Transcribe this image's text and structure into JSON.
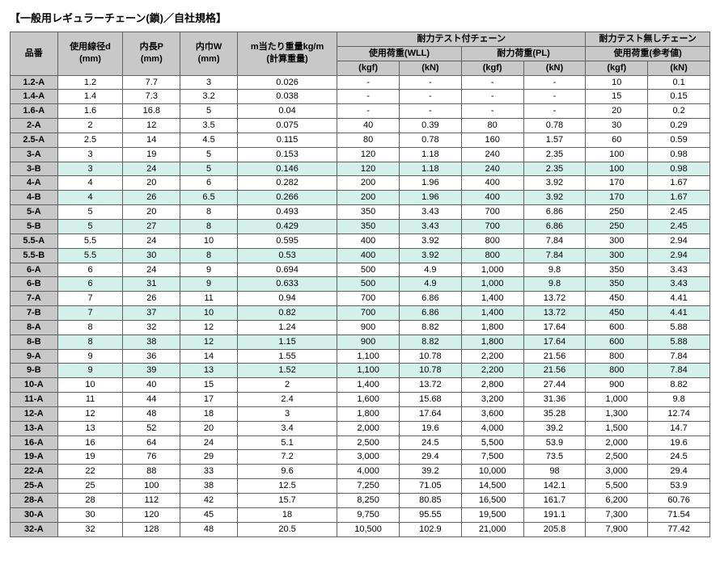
{
  "title": "【一般用レギュラーチェーン(鎖)／自社規格】",
  "headers": {
    "part_no": "品番",
    "wire_dia": "使用線径d",
    "wire_dia_unit": "(mm)",
    "inner_len": "内長P",
    "inner_len_unit": "(mm)",
    "inner_width": "内巾W",
    "inner_width_unit": "(mm)",
    "weight_per_m": "m当たり重量kg/m",
    "weight_calc": "(計算重量)",
    "chain_with_test": "耐力テスト付チェーン",
    "wll": "使用荷重(WLL)",
    "pl": "耐力荷重(PL)",
    "chain_no_test": "耐力テスト無しチェーン",
    "ref_load": "使用荷重(参考値)",
    "kgf": "(kgf)",
    "kn": "(kN)"
  },
  "rows": [
    {
      "pn": "1.2-A",
      "d": "1.2",
      "p": "7.7",
      "w": "3",
      "wt": "0.026",
      "wll_kgf": "-",
      "wll_kn": "-",
      "pl_kgf": "-",
      "pl_kn": "-",
      "ref_kgf": "10",
      "ref_kn": "0.1",
      "b": false
    },
    {
      "pn": "1.4-A",
      "d": "1.4",
      "p": "7.3",
      "w": "3.2",
      "wt": "0.038",
      "wll_kgf": "-",
      "wll_kn": "-",
      "pl_kgf": "-",
      "pl_kn": "-",
      "ref_kgf": "15",
      "ref_kn": "0.15",
      "b": false
    },
    {
      "pn": "1.6-A",
      "d": "1.6",
      "p": "16.8",
      "w": "5",
      "wt": "0.04",
      "wll_kgf": "-",
      "wll_kn": "-",
      "pl_kgf": "-",
      "pl_kn": "-",
      "ref_kgf": "20",
      "ref_kn": "0.2",
      "b": false
    },
    {
      "pn": "2-A",
      "d": "2",
      "p": "12",
      "w": "3.5",
      "wt": "0.075",
      "wll_kgf": "40",
      "wll_kn": "0.39",
      "pl_kgf": "80",
      "pl_kn": "0.78",
      "ref_kgf": "30",
      "ref_kn": "0.29",
      "b": false
    },
    {
      "pn": "2.5-A",
      "d": "2.5",
      "p": "14",
      "w": "4.5",
      "wt": "0.115",
      "wll_kgf": "80",
      "wll_kn": "0.78",
      "pl_kgf": "160",
      "pl_kn": "1.57",
      "ref_kgf": "60",
      "ref_kn": "0.59",
      "b": false
    },
    {
      "pn": "3-A",
      "d": "3",
      "p": "19",
      "w": "5",
      "wt": "0.153",
      "wll_kgf": "120",
      "wll_kn": "1.18",
      "pl_kgf": "240",
      "pl_kn": "2.35",
      "ref_kgf": "100",
      "ref_kn": "0.98",
      "b": false
    },
    {
      "pn": "3-B",
      "d": "3",
      "p": "24",
      "w": "5",
      "wt": "0.146",
      "wll_kgf": "120",
      "wll_kn": "1.18",
      "pl_kgf": "240",
      "pl_kn": "2.35",
      "ref_kgf": "100",
      "ref_kn": "0.98",
      "b": true
    },
    {
      "pn": "4-A",
      "d": "4",
      "p": "20",
      "w": "6",
      "wt": "0.282",
      "wll_kgf": "200",
      "wll_kn": "1.96",
      "pl_kgf": "400",
      "pl_kn": "3.92",
      "ref_kgf": "170",
      "ref_kn": "1.67",
      "b": false
    },
    {
      "pn": "4-B",
      "d": "4",
      "p": "26",
      "w": "6.5",
      "wt": "0.266",
      "wll_kgf": "200",
      "wll_kn": "1.96",
      "pl_kgf": "400",
      "pl_kn": "3.92",
      "ref_kgf": "170",
      "ref_kn": "1.67",
      "b": true
    },
    {
      "pn": "5-A",
      "d": "5",
      "p": "20",
      "w": "8",
      "wt": "0.493",
      "wll_kgf": "350",
      "wll_kn": "3.43",
      "pl_kgf": "700",
      "pl_kn": "6.86",
      "ref_kgf": "250",
      "ref_kn": "2.45",
      "b": false
    },
    {
      "pn": "5-B",
      "d": "5",
      "p": "27",
      "w": "8",
      "wt": "0.429",
      "wll_kgf": "350",
      "wll_kn": "3.43",
      "pl_kgf": "700",
      "pl_kn": "6.86",
      "ref_kgf": "250",
      "ref_kn": "2.45",
      "b": true
    },
    {
      "pn": "5.5-A",
      "d": "5.5",
      "p": "24",
      "w": "10",
      "wt": "0.595",
      "wll_kgf": "400",
      "wll_kn": "3.92",
      "pl_kgf": "800",
      "pl_kn": "7.84",
      "ref_kgf": "300",
      "ref_kn": "2.94",
      "b": false
    },
    {
      "pn": "5.5-B",
      "d": "5.5",
      "p": "30",
      "w": "8",
      "wt": "0.53",
      "wll_kgf": "400",
      "wll_kn": "3.92",
      "pl_kgf": "800",
      "pl_kn": "7.84",
      "ref_kgf": "300",
      "ref_kn": "2.94",
      "b": true
    },
    {
      "pn": "6-A",
      "d": "6",
      "p": "24",
      "w": "9",
      "wt": "0.694",
      "wll_kgf": "500",
      "wll_kn": "4.9",
      "pl_kgf": "1,000",
      "pl_kn": "9.8",
      "ref_kgf": "350",
      "ref_kn": "3.43",
      "b": false
    },
    {
      "pn": "6-B",
      "d": "6",
      "p": "31",
      "w": "9",
      "wt": "0.633",
      "wll_kgf": "500",
      "wll_kn": "4.9",
      "pl_kgf": "1,000",
      "pl_kn": "9.8",
      "ref_kgf": "350",
      "ref_kn": "3.43",
      "b": true
    },
    {
      "pn": "7-A",
      "d": "7",
      "p": "26",
      "w": "11",
      "wt": "0.94",
      "wll_kgf": "700",
      "wll_kn": "6.86",
      "pl_kgf": "1,400",
      "pl_kn": "13.72",
      "ref_kgf": "450",
      "ref_kn": "4.41",
      "b": false
    },
    {
      "pn": "7-B",
      "d": "7",
      "p": "37",
      "w": "10",
      "wt": "0.82",
      "wll_kgf": "700",
      "wll_kn": "6.86",
      "pl_kgf": "1,400",
      "pl_kn": "13.72",
      "ref_kgf": "450",
      "ref_kn": "4.41",
      "b": true
    },
    {
      "pn": "8-A",
      "d": "8",
      "p": "32",
      "w": "12",
      "wt": "1.24",
      "wll_kgf": "900",
      "wll_kn": "8.82",
      "pl_kgf": "1,800",
      "pl_kn": "17.64",
      "ref_kgf": "600",
      "ref_kn": "5.88",
      "b": false
    },
    {
      "pn": "8-B",
      "d": "8",
      "p": "38",
      "w": "12",
      "wt": "1.15",
      "wll_kgf": "900",
      "wll_kn": "8.82",
      "pl_kgf": "1,800",
      "pl_kn": "17.64",
      "ref_kgf": "600",
      "ref_kn": "5.88",
      "b": true
    },
    {
      "pn": "9-A",
      "d": "9",
      "p": "36",
      "w": "14",
      "wt": "1.55",
      "wll_kgf": "1,100",
      "wll_kn": "10.78",
      "pl_kgf": "2,200",
      "pl_kn": "21.56",
      "ref_kgf": "800",
      "ref_kn": "7.84",
      "b": false
    },
    {
      "pn": "9-B",
      "d": "9",
      "p": "39",
      "w": "13",
      "wt": "1.52",
      "wll_kgf": "1,100",
      "wll_kn": "10.78",
      "pl_kgf": "2,200",
      "pl_kn": "21.56",
      "ref_kgf": "800",
      "ref_kn": "7.84",
      "b": true
    },
    {
      "pn": "10-A",
      "d": "10",
      "p": "40",
      "w": "15",
      "wt": "2",
      "wll_kgf": "1,400",
      "wll_kn": "13.72",
      "pl_kgf": "2,800",
      "pl_kn": "27.44",
      "ref_kgf": "900",
      "ref_kn": "8.82",
      "b": false
    },
    {
      "pn": "11-A",
      "d": "11",
      "p": "44",
      "w": "17",
      "wt": "2.4",
      "wll_kgf": "1,600",
      "wll_kn": "15.68",
      "pl_kgf": "3,200",
      "pl_kn": "31.36",
      "ref_kgf": "1,000",
      "ref_kn": "9.8",
      "b": false
    },
    {
      "pn": "12-A",
      "d": "12",
      "p": "48",
      "w": "18",
      "wt": "3",
      "wll_kgf": "1,800",
      "wll_kn": "17.64",
      "pl_kgf": "3,600",
      "pl_kn": "35.28",
      "ref_kgf": "1,300",
      "ref_kn": "12.74",
      "b": false
    },
    {
      "pn": "13-A",
      "d": "13",
      "p": "52",
      "w": "20",
      "wt": "3.4",
      "wll_kgf": "2,000",
      "wll_kn": "19.6",
      "pl_kgf": "4,000",
      "pl_kn": "39.2",
      "ref_kgf": "1,500",
      "ref_kn": "14.7",
      "b": false
    },
    {
      "pn": "16-A",
      "d": "16",
      "p": "64",
      "w": "24",
      "wt": "5.1",
      "wll_kgf": "2,500",
      "wll_kn": "24.5",
      "pl_kgf": "5,500",
      "pl_kn": "53.9",
      "ref_kgf": "2,000",
      "ref_kn": "19.6",
      "b": false
    },
    {
      "pn": "19-A",
      "d": "19",
      "p": "76",
      "w": "29",
      "wt": "7.2",
      "wll_kgf": "3,000",
      "wll_kn": "29.4",
      "pl_kgf": "7,500",
      "pl_kn": "73.5",
      "ref_kgf": "2,500",
      "ref_kn": "24.5",
      "b": false
    },
    {
      "pn": "22-A",
      "d": "22",
      "p": "88",
      "w": "33",
      "wt": "9.6",
      "wll_kgf": "4,000",
      "wll_kn": "39.2",
      "pl_kgf": "10,000",
      "pl_kn": "98",
      "ref_kgf": "3,000",
      "ref_kn": "29.4",
      "b": false
    },
    {
      "pn": "25-A",
      "d": "25",
      "p": "100",
      "w": "38",
      "wt": "12.5",
      "wll_kgf": "7,250",
      "wll_kn": "71.05",
      "pl_kgf": "14,500",
      "pl_kn": "142.1",
      "ref_kgf": "5,500",
      "ref_kn": "53.9",
      "b": false
    },
    {
      "pn": "28-A",
      "d": "28",
      "p": "112",
      "w": "42",
      "wt": "15.7",
      "wll_kgf": "8,250",
      "wll_kn": "80.85",
      "pl_kgf": "16,500",
      "pl_kn": "161.7",
      "ref_kgf": "6,200",
      "ref_kn": "60.76",
      "b": false
    },
    {
      "pn": "30-A",
      "d": "30",
      "p": "120",
      "w": "45",
      "wt": "18",
      "wll_kgf": "9,750",
      "wll_kn": "95.55",
      "pl_kgf": "19,500",
      "pl_kn": "191.1",
      "ref_kgf": "7,300",
      "ref_kn": "71.54",
      "b": false
    },
    {
      "pn": "32-A",
      "d": "32",
      "p": "128",
      "w": "48",
      "wt": "20.5",
      "wll_kgf": "10,500",
      "wll_kn": "102.9",
      "pl_kgf": "21,000",
      "pl_kn": "205.8",
      "ref_kgf": "7,900",
      "ref_kn": "77.42",
      "b": false
    }
  ],
  "style": {
    "header_bg": "#c8c8c8",
    "variant_b_bg": "#d4f0eb",
    "border_color": "#606060",
    "font_family": "MS PGothic",
    "font_size": 11
  }
}
